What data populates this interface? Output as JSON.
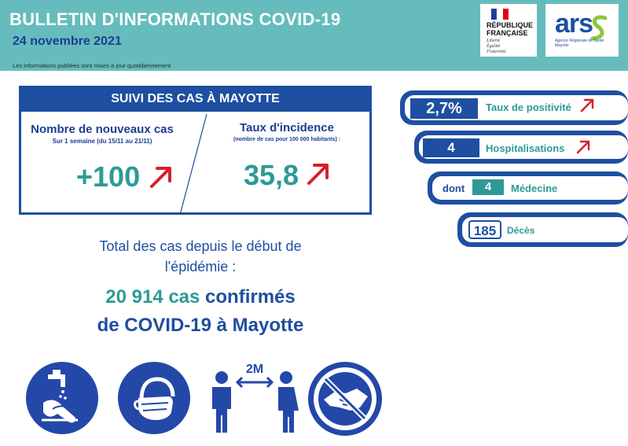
{
  "header": {
    "title": "BULLETIN D'INFORMATIONS COVID-19",
    "date": "24 novembre 2021",
    "notice": "Les informations publiées sont mises à jour quotidiennement"
  },
  "logos": {
    "rf_line1": "RÉPUBLIQUE",
    "rf_line2": "FRANÇAISE",
    "rf_motto1": "Liberté",
    "rf_motto2": "Égalité",
    "rf_motto3": "Fraternité",
    "ars_text": "ars",
    "ars_sub1": "Agence Régionale de Santé",
    "ars_sub2": "Mayotte"
  },
  "cases": {
    "heading": "SUIVI DES CAS À MAYOTTE",
    "new_cases_title": "Nombre de nouveaux cas",
    "new_cases_sub": "Sur 1 semaine (du 15/11 au 21/11)",
    "new_cases_value": "+100",
    "incidence_title": "Taux d'incidence",
    "incidence_sub": "(nombre de cas pour 100 000 habitants) :",
    "incidence_value": "35,8"
  },
  "stats": {
    "positivity_value": "2,7%",
    "positivity_label": "Taux de positivité",
    "hosp_value": "4",
    "hosp_label": "Hospitalisations",
    "med_prefix": "dont",
    "med_value": "4",
    "med_label": "Médecine",
    "deaths_value": "185",
    "deaths_label": "Décès"
  },
  "total": {
    "line1": "Total des cas depuis le début de",
    "line2": "l'épidémie :",
    "count": "20 914 cas",
    "confirmed": "confirmés",
    "line4": "de COVID-19 à Mayotte"
  },
  "icons": {
    "distance_label": "2M"
  },
  "colors": {
    "header_teal": "#66bcbc",
    "navy": "#1e4fa0",
    "teal": "#2d9a96",
    "arrow_red": "#d6202a"
  }
}
